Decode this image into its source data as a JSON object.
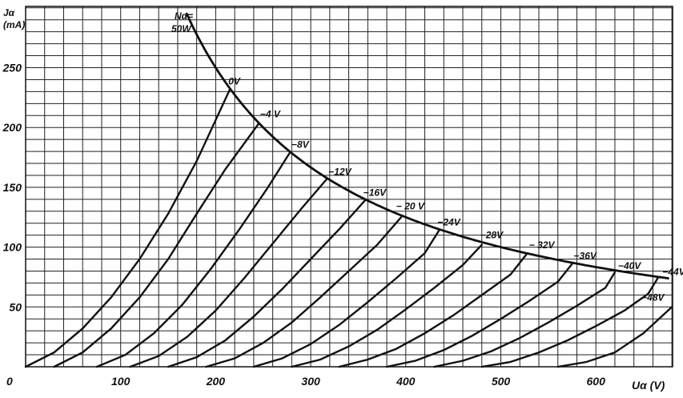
{
  "chart_data": {
    "type": "line",
    "title": "",
    "xlabel": "Uα (V)",
    "ylabel_line1": "Jα",
    "ylabel_line2": "(mA)",
    "origin_label": "0",
    "xlim": [
      0,
      680
    ],
    "ylim": [
      0,
      290
    ],
    "x_ticks": [
      100,
      200,
      300,
      400,
      500,
      600
    ],
    "y_ticks": [
      50,
      100,
      150,
      200,
      250
    ],
    "grid": true,
    "limit_curve": {
      "label_line1": "Nα=",
      "label_line2": "50W",
      "power_w": 50
    },
    "series": [
      {
        "name": "0V",
        "x": [
          0,
          30,
          60,
          90,
          120,
          150,
          180,
          215
        ],
        "y": [
          0,
          12,
          32,
          58,
          90,
          128,
          172,
          232
        ]
      },
      {
        "name": "−4 V",
        "x": [
          30,
          60,
          90,
          120,
          150,
          180,
          210,
          245
        ],
        "y": [
          0,
          12,
          32,
          58,
          90,
          128,
          165,
          203
        ]
      },
      {
        "name": "−8V",
        "x": [
          75,
          105,
          135,
          165,
          195,
          225,
          255,
          278
        ],
        "y": [
          0,
          10,
          28,
          52,
          82,
          115,
          150,
          179
        ]
      },
      {
        "name": "−12V",
        "x": [
          110,
          140,
          170,
          200,
          230,
          260,
          290,
          317
        ],
        "y": [
          0,
          9,
          25,
          47,
          74,
          103,
          132,
          157
        ]
      },
      {
        "name": "−16V",
        "x": [
          150,
          180,
          210,
          240,
          270,
          300,
          330,
          357
        ],
        "y": [
          0,
          8,
          22,
          42,
          65,
          90,
          115,
          139
        ]
      },
      {
        "name": "− 20 V",
        "x": [
          190,
          220,
          250,
          280,
          310,
          340,
          370,
          395
        ],
        "y": [
          0,
          7,
          20,
          37,
          58,
          80,
          102,
          125
        ]
      },
      {
        "name": "−24V",
        "x": [
          240,
          270,
          300,
          330,
          360,
          390,
          420,
          435
        ],
        "y": [
          0,
          7,
          19,
          35,
          54,
          74,
          95,
          114
        ]
      },
      {
        "name": "−28V",
        "x": [
          280,
          310,
          340,
          370,
          400,
          430,
          460,
          480
        ],
        "y": [
          0,
          6,
          17,
          31,
          48,
          66,
          85,
          102
        ]
      },
      {
        "name": "− 32V",
        "x": [
          330,
          360,
          390,
          420,
          450,
          480,
          510,
          528
        ],
        "y": [
          0,
          6,
          15,
          28,
          43,
          60,
          77,
          95
        ]
      },
      {
        "name": "−36V",
        "x": [
          380,
          410,
          440,
          470,
          500,
          530,
          560,
          575
        ],
        "y": [
          0,
          5,
          14,
          26,
          40,
          55,
          71,
          86
        ]
      },
      {
        "name": "−40V",
        "x": [
          430,
          460,
          490,
          520,
          550,
          580,
          610,
          620
        ],
        "y": [
          0,
          5,
          13,
          24,
          37,
          51,
          66,
          79
        ]
      },
      {
        "name": "−44V",
        "x": [
          480,
          510,
          540,
          570,
          600,
          630,
          655,
          665
        ],
        "y": [
          0,
          4,
          12,
          22,
          34,
          47,
          61,
          74
        ]
      },
      {
        "name": "−48V",
        "x": [
          560,
          590,
          620,
          650,
          680
        ],
        "y": [
          0,
          4,
          12,
          28,
          50
        ]
      }
    ]
  }
}
